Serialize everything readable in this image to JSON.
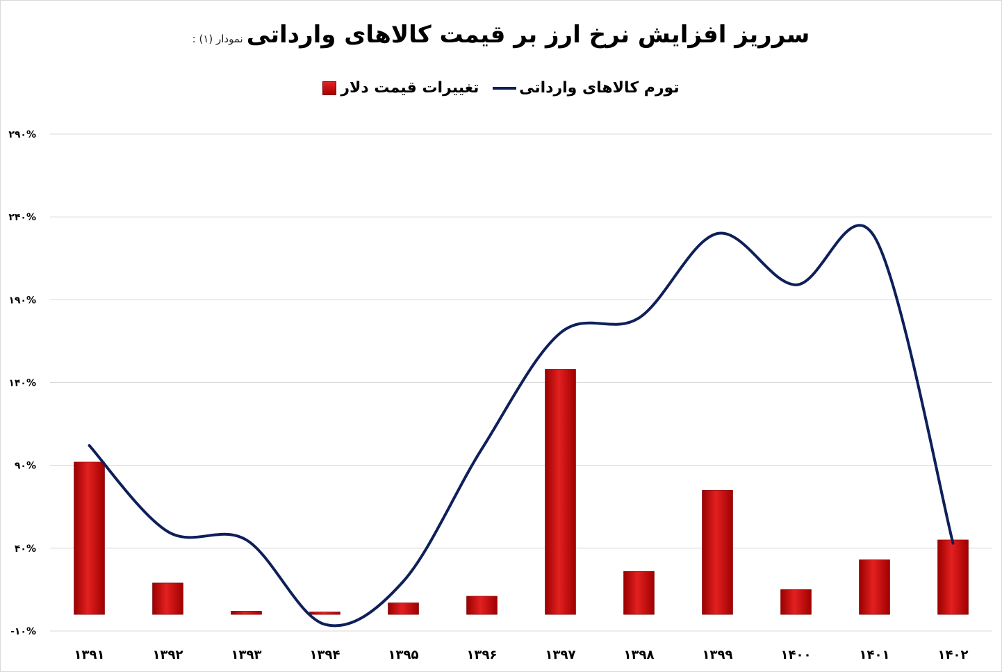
{
  "chart_data": {
    "type": "bar",
    "title": "سرریز افزایش نرخ ارز بر قیمت کالاهای وارداتی",
    "subtitle": "نمودار (۱) :",
    "categories": [
      "۱۳۹۱",
      "۱۳۹۲",
      "۱۳۹۳",
      "۱۳۹۴",
      "۱۳۹۵",
      "۱۳۹۶",
      "۱۳۹۷",
      "۱۳۹۸",
      "۱۳۹۹",
      "۱۴۰۰",
      "۱۴۰۱",
      "۱۴۰۲"
    ],
    "y_ticks": [
      "-۱۰%",
      "۴۰%",
      "۹۰%",
      "۱۴۰%",
      "۱۹۰%",
      "۲۴۰%",
      "۲۹۰%"
    ],
    "ylim": [
      -10,
      290
    ],
    "y_tick_values": [
      -10,
      40,
      90,
      140,
      190,
      240,
      290
    ],
    "legend_placement": "top",
    "grid": true,
    "series": [
      {
        "name": "تغییرات قیمت دلار",
        "kind": "bar",
        "color": "#c00000",
        "values": [
          92,
          19,
          2,
          1.5,
          7,
          11,
          148,
          26,
          75,
          15,
          33,
          45
        ]
      },
      {
        "name": "تورم کالاهای وارداتی",
        "kind": "line",
        "color": "#0e1f5a",
        "values": [
          102,
          50,
          45,
          -6,
          20,
          100,
          170,
          179,
          230,
          199,
          228,
          43
        ]
      }
    ]
  }
}
